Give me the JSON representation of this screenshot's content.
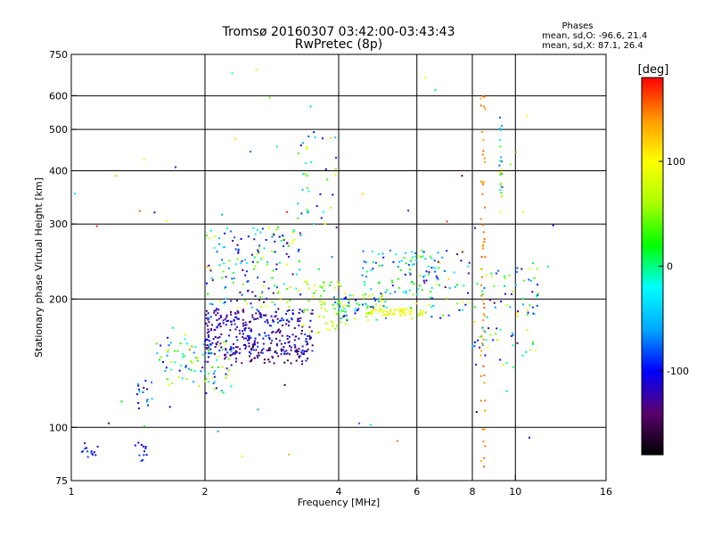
{
  "chart_data": {
    "type": "scatter",
    "title": "Tromsø 20160307 03:42:00-03:43:43",
    "subtitle": "RwPretec (8p)",
    "xlabel": "Frequency [MHz]",
    "ylabel": "Stationary phase Virtual Height [km]",
    "x_scale": "log",
    "y_scale": "log",
    "xlim": [
      1,
      16
    ],
    "ylim": [
      75,
      750
    ],
    "x_ticks": [
      1,
      2,
      4,
      6,
      8,
      10,
      16
    ],
    "y_ticks": [
      75,
      100,
      200,
      300,
      400,
      500,
      600,
      750
    ],
    "grid_x": [
      2,
      4,
      6,
      8,
      10
    ],
    "grid_y": [
      100,
      200,
      300,
      400,
      500,
      600
    ],
    "stats": {
      "heading": "Phases",
      "line_o": "mean, sd,O: -96.6, 21.4",
      "line_x": "mean, sd,X:  87.1, 26.4"
    },
    "colorbar": {
      "label": "[deg]",
      "range": [
        -180,
        180
      ],
      "ticks": [
        100,
        0,
        -100
      ],
      "stops": [
        "#000000",
        "#5a006e",
        "#0000ff",
        "#00aaff",
        "#00ffff",
        "#00ff00",
        "#aaff00",
        "#ffff00",
        "#ff9900",
        "#ff0000"
      ]
    },
    "clusters": [
      {
        "x": [
          1.05,
          1.15
        ],
        "y": [
          85,
          92
        ],
        "n": 14,
        "phase": [
          -130,
          -70
        ]
      },
      {
        "x": [
          1.38,
          1.48
        ],
        "y": [
          82,
          93
        ],
        "n": 12,
        "phase": [
          -130,
          -80
        ]
      },
      {
        "x": [
          1.38,
          1.55
        ],
        "y": [
          108,
          132
        ],
        "n": 16,
        "phase": [
          -120,
          -40
        ]
      },
      {
        "x": [
          1.55,
          1.9
        ],
        "y": [
          125,
          165
        ],
        "n": 45,
        "phase": [
          -120,
          110
        ]
      },
      {
        "x": [
          1.9,
          2.3
        ],
        "y": [
          120,
          160
        ],
        "n": 55,
        "phase": [
          -140,
          120
        ]
      },
      {
        "x": [
          2.0,
          3.5
        ],
        "y": [
          148,
          190
        ],
        "n": 320,
        "phase": [
          -150,
          -80
        ]
      },
      {
        "x": [
          2.0,
          3.3
        ],
        "y": [
          190,
          295
        ],
        "n": 170,
        "phase": [
          -150,
          110
        ]
      },
      {
        "x": [
          2.2,
          3.5
        ],
        "y": [
          140,
          155
        ],
        "n": 60,
        "phase": [
          -170,
          -120
        ]
      },
      {
        "x": [
          3.3,
          4.1
        ],
        "y": [
          165,
          220
        ],
        "n": 60,
        "phase": [
          20,
          110
        ]
      },
      {
        "x": [
          3.2,
          4.0
        ],
        "y": [
          300,
          490
        ],
        "n": 35,
        "phase": [
          -120,
          120
        ]
      },
      {
        "x": [
          3.9,
          5.2
        ],
        "y": [
          178,
          206
        ],
        "n": 80,
        "phase": [
          -120,
          110
        ]
      },
      {
        "x": [
          4.6,
          6.2
        ],
        "y": [
          183,
          190
        ],
        "n": 60,
        "phase": [
          70,
          110
        ]
      },
      {
        "x": [
          4.5,
          6.8
        ],
        "y": [
          205,
          260
        ],
        "n": 80,
        "phase": [
          -110,
          40
        ]
      },
      {
        "x": [
          5.8,
          7.9
        ],
        "y": [
          180,
          260
        ],
        "n": 60,
        "phase": [
          -160,
          120
        ]
      },
      {
        "x": [
          8.35,
          8.55
        ],
        "y": [
          78,
          640
        ],
        "n": 60,
        "phase": [
          130,
          160
        ]
      },
      {
        "x": [
          9.2,
          9.35
        ],
        "y": [
          320,
          580
        ],
        "n": 25,
        "phase": [
          -110,
          130
        ]
      },
      {
        "x": [
          8.0,
          11.3
        ],
        "y": [
          140,
          240
        ],
        "n": 90,
        "phase": [
          -140,
          110
        ]
      },
      {
        "x": [
          1.0,
          12.5
        ],
        "y": [
          80,
          700
        ],
        "n": 60,
        "phase": [
          -170,
          170
        ]
      }
    ]
  }
}
